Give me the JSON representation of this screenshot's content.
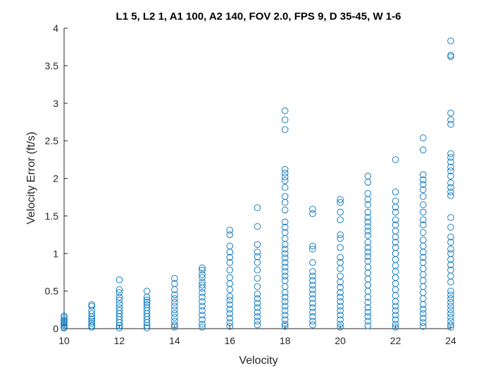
{
  "chart_data": {
    "type": "scatter",
    "title": "L1 5, L2 1, A1 100, A2 140, FOV 2.0, FPS 9, D 35-45, W 1-6",
    "xlabel": "Velocity",
    "ylabel": "Velocity Error (ft/s)",
    "xlim": [
      10,
      24
    ],
    "ylim": [
      0,
      4
    ],
    "xticks": [
      "10",
      "12",
      "14",
      "16",
      "18",
      "20",
      "22",
      "24"
    ],
    "yticks": [
      "0",
      "0.5",
      "1",
      "1.5",
      "2",
      "2.5",
      "3",
      "3.5",
      "4"
    ],
    "grid": false,
    "legend": "none",
    "marker": "circle-open",
    "color": "#0072BD",
    "series": [
      {
        "points": [
          [
            10,
            0.17
          ],
          [
            10,
            0.15
          ],
          [
            10,
            0.12
          ],
          [
            10,
            0.1
          ],
          [
            10,
            0.08
          ],
          [
            10,
            0.06
          ],
          [
            10,
            0.04
          ],
          [
            10,
            0.02
          ],
          [
            10,
            0.01
          ],
          [
            11,
            0.32
          ],
          [
            11,
            0.3
          ],
          [
            11,
            0.24
          ],
          [
            11,
            0.2
          ],
          [
            11,
            0.16
          ],
          [
            11,
            0.13
          ],
          [
            11,
            0.1
          ],
          [
            11,
            0.07
          ],
          [
            11,
            0.04
          ],
          [
            11,
            0.02
          ],
          [
            12,
            0.65
          ],
          [
            12,
            0.52
          ],
          [
            12,
            0.48
          ],
          [
            12,
            0.42
          ],
          [
            12,
            0.38
          ],
          [
            12,
            0.33
          ],
          [
            12,
            0.28
          ],
          [
            12,
            0.24
          ],
          [
            12,
            0.2
          ],
          [
            12,
            0.16
          ],
          [
            12,
            0.12
          ],
          [
            12,
            0.08
          ],
          [
            12,
            0.04
          ],
          [
            12,
            0.01
          ],
          [
            13,
            0.5
          ],
          [
            13,
            0.42
          ],
          [
            13,
            0.38
          ],
          [
            13,
            0.35
          ],
          [
            13,
            0.32
          ],
          [
            13,
            0.28
          ],
          [
            13,
            0.24
          ],
          [
            13,
            0.2
          ],
          [
            13,
            0.16
          ],
          [
            13,
            0.12
          ],
          [
            13,
            0.08
          ],
          [
            13,
            0.04
          ],
          [
            13,
            0.01
          ],
          [
            14,
            0.67
          ],
          [
            14,
            0.6
          ],
          [
            14,
            0.52
          ],
          [
            14,
            0.45
          ],
          [
            14,
            0.4
          ],
          [
            14,
            0.35
          ],
          [
            14,
            0.3
          ],
          [
            14,
            0.25
          ],
          [
            14,
            0.2
          ],
          [
            14,
            0.15
          ],
          [
            14,
            0.1
          ],
          [
            14,
            0.05
          ],
          [
            14,
            0.02
          ],
          [
            15,
            0.81
          ],
          [
            15,
            0.78
          ],
          [
            15,
            0.72
          ],
          [
            15,
            0.68
          ],
          [
            15,
            0.62
          ],
          [
            15,
            0.58
          ],
          [
            15,
            0.54
          ],
          [
            15,
            0.48
          ],
          [
            15,
            0.42
          ],
          [
            15,
            0.36
          ],
          [
            15,
            0.3
          ],
          [
            15,
            0.24
          ],
          [
            15,
            0.18
          ],
          [
            15,
            0.12
          ],
          [
            15,
            0.06
          ],
          [
            15,
            0.02
          ],
          [
            16,
            1.31
          ],
          [
            16,
            1.25
          ],
          [
            16,
            1.1
          ],
          [
            16,
            1.02
          ],
          [
            16,
            0.95
          ],
          [
            16,
            0.88
          ],
          [
            16,
            0.78
          ],
          [
            16,
            0.68
          ],
          [
            16,
            0.6
          ],
          [
            16,
            0.52
          ],
          [
            16,
            0.43
          ],
          [
            16,
            0.38
          ],
          [
            16,
            0.32
          ],
          [
            16,
            0.26
          ],
          [
            16,
            0.2
          ],
          [
            16,
            0.14
          ],
          [
            16,
            0.08
          ],
          [
            16,
            0.03
          ],
          [
            17,
            1.61
          ],
          [
            17,
            1.36
          ],
          [
            17,
            1.12
          ],
          [
            17,
            1.02
          ],
          [
            17,
            0.96
          ],
          [
            17,
            0.88
          ],
          [
            17,
            0.78
          ],
          [
            17,
            0.67
          ],
          [
            17,
            0.56
          ],
          [
            17,
            0.46
          ],
          [
            17,
            0.4
          ],
          [
            17,
            0.34
          ],
          [
            17,
            0.28
          ],
          [
            17,
            0.22
          ],
          [
            17,
            0.16
          ],
          [
            17,
            0.1
          ],
          [
            17,
            0.05
          ],
          [
            18,
            2.9
          ],
          [
            18,
            2.78
          ],
          [
            18,
            2.65
          ],
          [
            18,
            2.12
          ],
          [
            18,
            2.07
          ],
          [
            18,
            2.02
          ],
          [
            18,
            1.97
          ],
          [
            18,
            1.88
          ],
          [
            18,
            1.76
          ],
          [
            18,
            1.68
          ],
          [
            18,
            1.58
          ],
          [
            18,
            1.42
          ],
          [
            18,
            1.35
          ],
          [
            18,
            1.28
          ],
          [
            18,
            1.2
          ],
          [
            18,
            1.12
          ],
          [
            18,
            1.06
          ],
          [
            18,
            1.0
          ],
          [
            18,
            0.94
          ],
          [
            18,
            0.88
          ],
          [
            18,
            0.82
          ],
          [
            18,
            0.76
          ],
          [
            18,
            0.7
          ],
          [
            18,
            0.64
          ],
          [
            18,
            0.56
          ],
          [
            18,
            0.48
          ],
          [
            18,
            0.42
          ],
          [
            18,
            0.36
          ],
          [
            18,
            0.3
          ],
          [
            18,
            0.24
          ],
          [
            18,
            0.18
          ],
          [
            18,
            0.12
          ],
          [
            18,
            0.06
          ],
          [
            18,
            0.03
          ],
          [
            19,
            1.59
          ],
          [
            19,
            1.53
          ],
          [
            19,
            1.1
          ],
          [
            19,
            1.06
          ],
          [
            19,
            0.88
          ],
          [
            19,
            0.76
          ],
          [
            19,
            0.7
          ],
          [
            19,
            0.64
          ],
          [
            19,
            0.58
          ],
          [
            19,
            0.52
          ],
          [
            19,
            0.46
          ],
          [
            19,
            0.4
          ],
          [
            19,
            0.34
          ],
          [
            19,
            0.28
          ],
          [
            19,
            0.22
          ],
          [
            19,
            0.16
          ],
          [
            19,
            0.1
          ],
          [
            19,
            0.05
          ],
          [
            20,
            1.72
          ],
          [
            20,
            1.68
          ],
          [
            20,
            1.55
          ],
          [
            20,
            1.45
          ],
          [
            20,
            1.25
          ],
          [
            20,
            1.2
          ],
          [
            20,
            1.08
          ],
          [
            20,
            0.95
          ],
          [
            20,
            0.88
          ],
          [
            20,
            0.8
          ],
          [
            20,
            0.7
          ],
          [
            20,
            0.62
          ],
          [
            20,
            0.55
          ],
          [
            20,
            0.48
          ],
          [
            20,
            0.42
          ],
          [
            20,
            0.36
          ],
          [
            20,
            0.3
          ],
          [
            20,
            0.24
          ],
          [
            20,
            0.18
          ],
          [
            20,
            0.12
          ],
          [
            20,
            0.06
          ],
          [
            20,
            0.02
          ],
          [
            21,
            2.03
          ],
          [
            21,
            1.95
          ],
          [
            21,
            1.8
          ],
          [
            21,
            1.72
          ],
          [
            21,
            1.65
          ],
          [
            21,
            1.55
          ],
          [
            21,
            1.48
          ],
          [
            21,
            1.42
          ],
          [
            21,
            1.36
          ],
          [
            21,
            1.3
          ],
          [
            21,
            1.24
          ],
          [
            21,
            1.15
          ],
          [
            21,
            1.08
          ],
          [
            21,
            1.02
          ],
          [
            21,
            0.96
          ],
          [
            21,
            0.9
          ],
          [
            21,
            0.82
          ],
          [
            21,
            0.74
          ],
          [
            21,
            0.66
          ],
          [
            21,
            0.58
          ],
          [
            21,
            0.5
          ],
          [
            21,
            0.42
          ],
          [
            21,
            0.35
          ],
          [
            21,
            0.28
          ],
          [
            21,
            0.22
          ],
          [
            21,
            0.16
          ],
          [
            21,
            0.1
          ],
          [
            21,
            0.04
          ],
          [
            22,
            2.25
          ],
          [
            22,
            1.82
          ],
          [
            22,
            1.7
          ],
          [
            22,
            1.62
          ],
          [
            22,
            1.55
          ],
          [
            22,
            1.45
          ],
          [
            22,
            1.38
          ],
          [
            22,
            1.3
          ],
          [
            22,
            1.22
          ],
          [
            22,
            1.15
          ],
          [
            22,
            1.08
          ],
          [
            22,
            1.0
          ],
          [
            22,
            0.92
          ],
          [
            22,
            0.84
          ],
          [
            22,
            0.76
          ],
          [
            22,
            0.68
          ],
          [
            22,
            0.6
          ],
          [
            22,
            0.52
          ],
          [
            22,
            0.44
          ],
          [
            22,
            0.36
          ],
          [
            22,
            0.3
          ],
          [
            22,
            0.24
          ],
          [
            22,
            0.18
          ],
          [
            22,
            0.12
          ],
          [
            22,
            0.06
          ],
          [
            22,
            0.02
          ],
          [
            23,
            2.54
          ],
          [
            23,
            2.38
          ],
          [
            23,
            2.05
          ],
          [
            23,
            1.98
          ],
          [
            23,
            1.92
          ],
          [
            23,
            1.85
          ],
          [
            23,
            1.76
          ],
          [
            23,
            1.65
          ],
          [
            23,
            1.55
          ],
          [
            23,
            1.45
          ],
          [
            23,
            1.38
          ],
          [
            23,
            1.28
          ],
          [
            23,
            1.18
          ],
          [
            23,
            1.1
          ],
          [
            23,
            1.02
          ],
          [
            23,
            0.95
          ],
          [
            23,
            0.88
          ],
          [
            23,
            0.8
          ],
          [
            23,
            0.72
          ],
          [
            23,
            0.64
          ],
          [
            23,
            0.56
          ],
          [
            23,
            0.48
          ],
          [
            23,
            0.4
          ],
          [
            23,
            0.32
          ],
          [
            23,
            0.26
          ],
          [
            23,
            0.2
          ],
          [
            23,
            0.14
          ],
          [
            23,
            0.08
          ],
          [
            23,
            0.03
          ],
          [
            24,
            3.83
          ],
          [
            24,
            3.64
          ],
          [
            24,
            3.62
          ],
          [
            24,
            2.87
          ],
          [
            24,
            2.78
          ],
          [
            24,
            2.72
          ],
          [
            24,
            2.33
          ],
          [
            24,
            2.28
          ],
          [
            24,
            2.22
          ],
          [
            24,
            2.15
          ],
          [
            24,
            2.1
          ],
          [
            24,
            2.03
          ],
          [
            24,
            1.94
          ],
          [
            24,
            1.88
          ],
          [
            24,
            1.82
          ],
          [
            24,
            1.77
          ],
          [
            24,
            1.48
          ],
          [
            24,
            1.35
          ],
          [
            24,
            1.22
          ],
          [
            24,
            1.15
          ],
          [
            24,
            1.06
          ],
          [
            24,
            1.0
          ],
          [
            24,
            0.92
          ],
          [
            24,
            0.85
          ],
          [
            24,
            0.78
          ],
          [
            24,
            0.7
          ],
          [
            24,
            0.62
          ],
          [
            24,
            0.5
          ],
          [
            24,
            0.45
          ],
          [
            24,
            0.4
          ],
          [
            24,
            0.35
          ],
          [
            24,
            0.3
          ],
          [
            24,
            0.25
          ],
          [
            24,
            0.2
          ],
          [
            24,
            0.15
          ],
          [
            24,
            0.1
          ],
          [
            24,
            0.05
          ],
          [
            24,
            0.02
          ]
        ]
      }
    ]
  }
}
